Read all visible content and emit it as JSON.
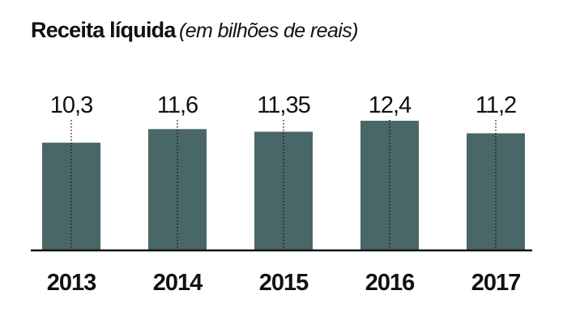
{
  "title": {
    "main": "Receita líquida",
    "sub": "(em bilhões de reais)"
  },
  "colors": {
    "bar": "#4a6767",
    "baseline": "#111111",
    "text": "#111111"
  },
  "chart_data": {
    "type": "bar",
    "title": "Receita líquida (em bilhões de reais)",
    "categories": [
      "2013",
      "2014",
      "2015",
      "2016",
      "2017"
    ],
    "values": [
      10.3,
      11.6,
      11.35,
      12.4,
      11.2
    ],
    "data_labels": [
      "10,3",
      "11,6",
      "11,35",
      "12,4",
      "11,2"
    ],
    "xlabel": "",
    "ylabel": "",
    "ylim": [
      0,
      12.4
    ],
    "grid": false,
    "legend": "none",
    "value_guides": "dotted"
  }
}
